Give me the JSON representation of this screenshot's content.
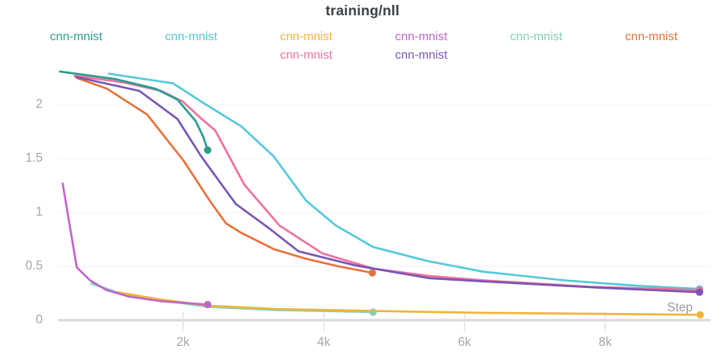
{
  "title": "training/nll",
  "x_axis_label": "Step",
  "legend": {
    "columns": 6,
    "items": [
      {
        "label": "cnn-mnist",
        "color": "#2a9d8f",
        "row": 1,
        "col": 1
      },
      {
        "label": "cnn-mnist",
        "color": "#54c8da",
        "row": 1,
        "col": 2
      },
      {
        "label": "cnn-mnist",
        "color": "#f0b43c",
        "row": 1,
        "col": 3
      },
      {
        "label": "cnn-mnist",
        "color": "#c065cc",
        "row": 1,
        "col": 4
      },
      {
        "label": "cnn-mnist",
        "color": "#7fd1ba",
        "row": 1,
        "col": 5
      },
      {
        "label": "cnn-mnist",
        "color": "#e8713a",
        "row": 1,
        "col": 6
      },
      {
        "label": "cnn-mnist",
        "color": "#f0709f",
        "row": 2,
        "col": 3
      },
      {
        "label": "cnn-mnist",
        "color": "#7956b5",
        "row": 2,
        "col": 4
      }
    ]
  },
  "chart_data": {
    "type": "line",
    "title": "training/nll",
    "xlabel": "Step",
    "ylabel": "",
    "xlim": [
      0,
      9700
    ],
    "ylim": [
      0,
      2.4
    ],
    "grid": "horizontal",
    "legend_position": "top",
    "x_ticks": [
      {
        "step": 2000,
        "label": "2k"
      },
      {
        "step": 4000,
        "label": "4k"
      },
      {
        "step": 6000,
        "label": "6k"
      },
      {
        "step": 8000,
        "label": "8k"
      }
    ],
    "y_ticks": [
      {
        "value": 0,
        "label": "0"
      },
      {
        "value": 0.5,
        "label": "0.5"
      },
      {
        "value": 1,
        "label": "1"
      },
      {
        "value": 1.5,
        "label": "1.5"
      },
      {
        "value": 2,
        "label": "2"
      }
    ],
    "series": [
      {
        "name": "cnn-mnist",
        "color": "#7fd1ba",
        "end_dot": true,
        "points": [
          [
            700,
            0.34
          ],
          [
            1100,
            0.25
          ],
          [
            1700,
            0.185
          ],
          [
            2350,
            0.125
          ],
          [
            3300,
            0.095
          ],
          [
            4000,
            0.085
          ],
          [
            4700,
            0.075
          ]
        ]
      },
      {
        "name": "cnn-mnist",
        "color": "#f0b43c",
        "end_dot": true,
        "points": [
          [
            1060,
            0.26
          ],
          [
            1700,
            0.19
          ],
          [
            2350,
            0.135
          ],
          [
            3300,
            0.105
          ],
          [
            4700,
            0.085
          ],
          [
            6300,
            0.068
          ],
          [
            8000,
            0.058
          ],
          [
            9350,
            0.05
          ]
        ]
      },
      {
        "name": "cnn-mnist",
        "color": "#c065cc",
        "end_dot": true,
        "points": [
          [
            290,
            1.27
          ],
          [
            490,
            0.49
          ],
          [
            680,
            0.37
          ],
          [
            910,
            0.28
          ],
          [
            1230,
            0.22
          ],
          [
            1700,
            0.175
          ],
          [
            2350,
            0.145
          ]
        ]
      },
      {
        "name": "cnn-mnist",
        "color": "#54c8da",
        "end_dot": true,
        "points": [
          [
            950,
            2.29
          ],
          [
            1860,
            2.2
          ],
          [
            2260,
            2.03
          ],
          [
            2830,
            1.8
          ],
          [
            3290,
            1.52
          ],
          [
            3750,
            1.11
          ],
          [
            4170,
            0.88
          ],
          [
            4700,
            0.68
          ],
          [
            5470,
            0.55
          ],
          [
            6270,
            0.45
          ],
          [
            7420,
            0.37
          ],
          [
            8450,
            0.32
          ],
          [
            9340,
            0.29
          ]
        ]
      },
      {
        "name": "cnn-mnist",
        "color": "#e8713a",
        "end_dot": true,
        "points": [
          [
            490,
            2.25
          ],
          [
            920,
            2.15
          ],
          [
            1490,
            1.91
          ],
          [
            2010,
            1.48
          ],
          [
            2380,
            1.11
          ],
          [
            2610,
            0.9
          ],
          [
            2830,
            0.81
          ],
          [
            3290,
            0.66
          ],
          [
            3750,
            0.57
          ],
          [
            4210,
            0.5
          ],
          [
            4690,
            0.44
          ]
        ]
      },
      {
        "name": "cnn-mnist",
        "color": "#f0709f",
        "end_dot": true,
        "points": [
          [
            460,
            2.27
          ],
          [
            1150,
            2.21
          ],
          [
            1690,
            2.13
          ],
          [
            2000,
            2.03
          ],
          [
            2230,
            1.89
          ],
          [
            2460,
            1.76
          ],
          [
            2870,
            1.26
          ],
          [
            3370,
            0.88
          ],
          [
            3980,
            0.62
          ],
          [
            4700,
            0.48
          ],
          [
            5500,
            0.41
          ],
          [
            6270,
            0.37
          ],
          [
            7790,
            0.31
          ],
          [
            9340,
            0.28
          ]
        ]
      },
      {
        "name": "cnn-mnist",
        "color": "#7956b5",
        "end_dot": true,
        "points": [
          [
            480,
            2.26
          ],
          [
            1380,
            2.13
          ],
          [
            1920,
            1.87
          ],
          [
            2260,
            1.52
          ],
          [
            2750,
            1.08
          ],
          [
            3210,
            0.86
          ],
          [
            3640,
            0.64
          ],
          [
            4440,
            0.51
          ],
          [
            5500,
            0.39
          ],
          [
            6270,
            0.36
          ],
          [
            7990,
            0.3
          ],
          [
            9340,
            0.26
          ]
        ]
      },
      {
        "name": "cnn-mnist",
        "color": "#2a9d8f",
        "end_dot": true,
        "points": [
          [
            250,
            2.31
          ],
          [
            1040,
            2.24
          ],
          [
            1610,
            2.15
          ],
          [
            1920,
            2.05
          ],
          [
            2180,
            1.85
          ],
          [
            2290,
            1.7
          ],
          [
            2350,
            1.58
          ]
        ]
      }
    ]
  }
}
